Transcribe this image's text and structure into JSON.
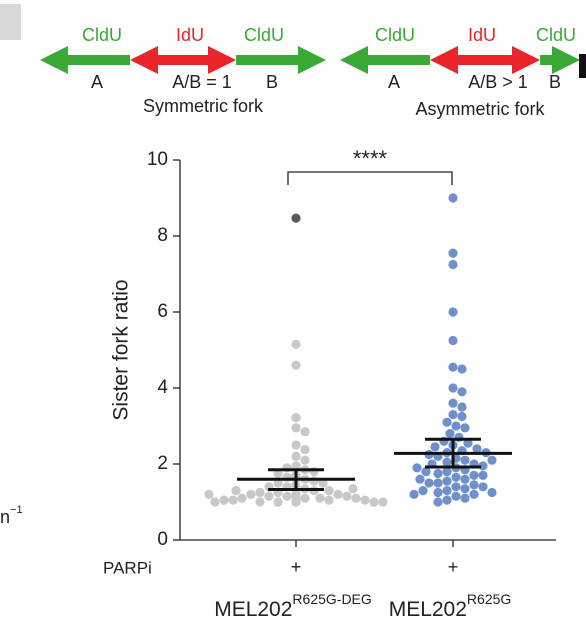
{
  "diagrams": [
    {
      "segments": [
        "CldU",
        "IdU",
        "CldU"
      ],
      "labels": [
        "A",
        "A/B = 1",
        "B"
      ],
      "caption": "Symmetric fork"
    },
    {
      "segments": [
        "CldU",
        "IdU",
        "CldU"
      ],
      "labels": [
        "A",
        "A/B > 1",
        "B"
      ],
      "caption": "Asymmetric fork"
    }
  ],
  "side_text": {
    "base": "n",
    "sup": "−1"
  },
  "chart_data": {
    "type": "strip",
    "y_label": "Sister fork ratio",
    "ylim": [
      0,
      10
    ],
    "yticks": [
      0,
      2,
      4,
      6,
      8,
      10
    ],
    "categories": [
      {
        "base": "MEL202",
        "sup": "R625G-DEG"
      },
      {
        "base": "MEL202",
        "sup": "R625G"
      }
    ],
    "row_label": "PARPi",
    "row_values": [
      "+",
      "+"
    ],
    "significance": "****",
    "series": [
      {
        "category": 0,
        "color": "#c8c8c8",
        "values": [
          5.15,
          4.6,
          3.22,
          2.95,
          2.85,
          2.5,
          2.38,
          2.2,
          2.1,
          1.95,
          1.9,
          1.85,
          1.8,
          1.75,
          1.7,
          1.65,
          1.6,
          1.55,
          1.5,
          1.5,
          1.45,
          1.4,
          1.4,
          1.35,
          1.3,
          1.3,
          1.25,
          1.25,
          1.2,
          1.2,
          1.2,
          1.15,
          1.15,
          1.15,
          1.1,
          1.1,
          1.1,
          1.1,
          1.05,
          1.05,
          1.05,
          1.05,
          1.0,
          1.0,
          1.0,
          1.0,
          1.0,
          1.0,
          1.0,
          1.1,
          1.2,
          1.3,
          1.35
        ]
      },
      {
        "category": 0,
        "color": "#5a5a5a",
        "values": [
          8.47
        ]
      },
      {
        "category": 1,
        "color": "#7090cc",
        "values": [
          9.0,
          7.55,
          7.25,
          6.0,
          5.25,
          4.55,
          4.5,
          4.0,
          3.9,
          3.6,
          3.5,
          3.3,
          3.25,
          3.1,
          3.0,
          2.95,
          2.8,
          2.7,
          2.6,
          2.55,
          2.5,
          2.45,
          2.4,
          2.35,
          2.3,
          2.25,
          2.2,
          2.15,
          2.1,
          2.05,
          2.0,
          2.0,
          1.95,
          1.9,
          1.85,
          1.8,
          1.75,
          1.7,
          1.65,
          1.6,
          1.55,
          1.5,
          1.5,
          1.45,
          1.4,
          1.4,
          1.35,
          1.3,
          1.3,
          1.25,
          1.25,
          1.2,
          1.2,
          1.15,
          1.1,
          1.05,
          1.0,
          1.6,
          1.7,
          1.8,
          1.9,
          2.1,
          2.3
        ]
      }
    ],
    "summary": [
      {
        "mean": 1.6,
        "low": 1.33,
        "high": 1.85
      },
      {
        "mean": 2.28,
        "low": 1.92,
        "high": 2.65
      }
    ]
  }
}
